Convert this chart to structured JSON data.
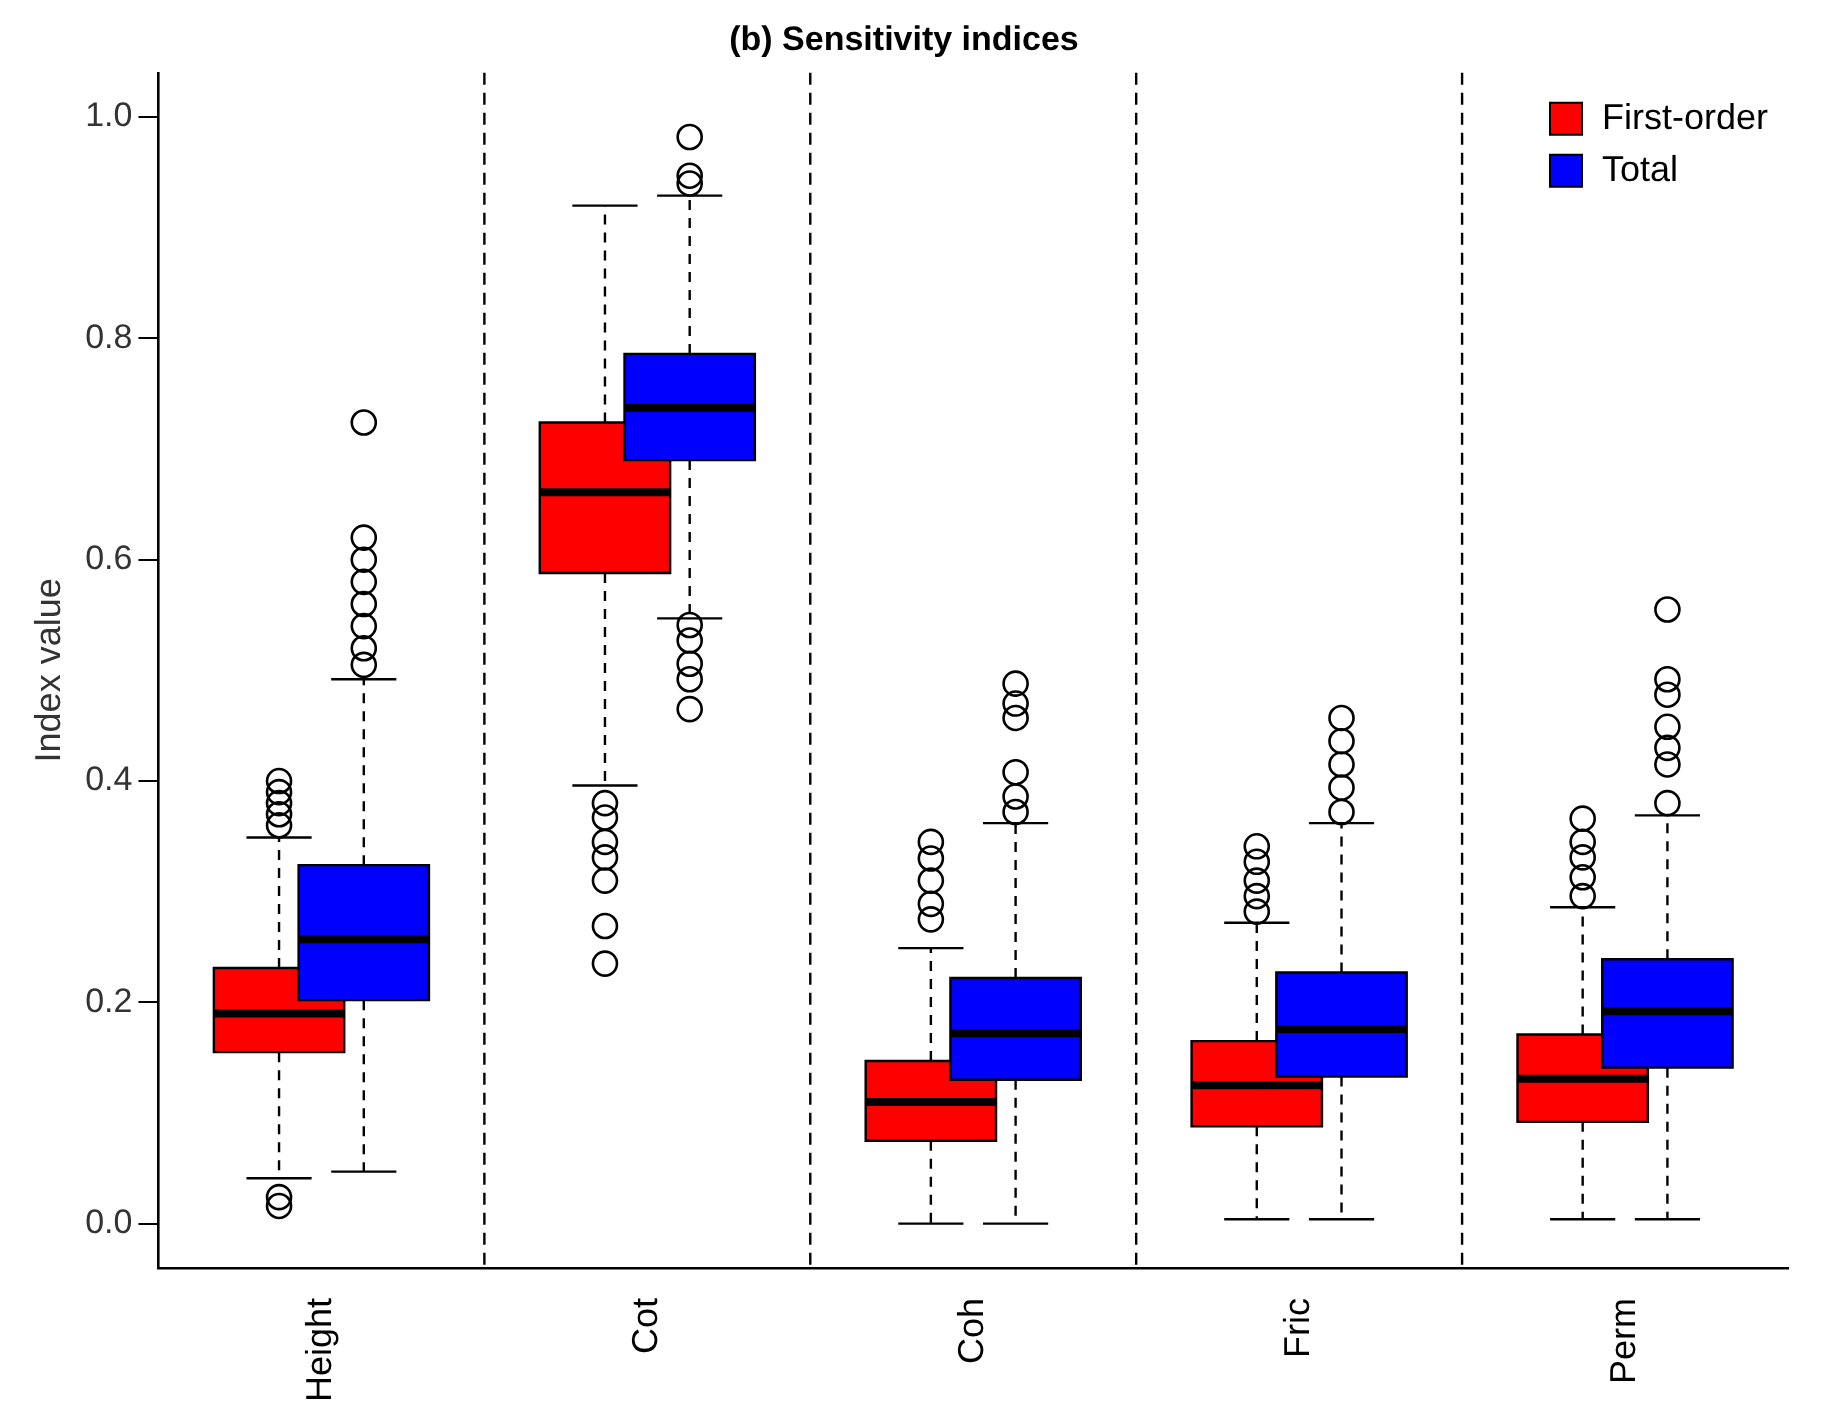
{
  "chart_data": {
    "type": "box",
    "title": "(b) Sensitivity indices",
    "ylabel": "Index value",
    "categories": [
      "Height",
      "Cot",
      "Coh",
      "Fric",
      "Perm"
    ],
    "ylim": [
      -0.04,
      1.04
    ],
    "yticks": [
      {
        "value": 0,
        "label": "0.0"
      },
      {
        "value": 0.2,
        "label": "0.2"
      },
      {
        "value": 0.4,
        "label": "0.4"
      },
      {
        "value": 0.6,
        "label": "0.6"
      },
      {
        "value": 0.8,
        "label": "0.8"
      },
      {
        "value": 1,
        "label": "1.0"
      }
    ],
    "grid": false,
    "legend": "top right",
    "series": [
      {
        "name": "First-order",
        "color": "#ff0000",
        "boxes": [
          {
            "low": 0.041,
            "q1": 0.155,
            "median": 0.19,
            "q3": 0.231,
            "high": 0.349,
            "outliers": [
              0.36,
              0.37,
              0.38,
              0.39,
              0.4,
              0.016,
              0.024
            ]
          },
          {
            "low": 0.396,
            "q1": 0.588,
            "median": 0.661,
            "q3": 0.724,
            "high": 0.92,
            "outliers": [
              0.38,
              0.367,
              0.345,
              0.331,
              0.31,
              0.269,
              0.235
            ]
          },
          {
            "low": 0,
            "q1": 0.075,
            "median": 0.11,
            "q3": 0.147,
            "high": 0.249,
            "outliers": [
              0.275,
              0.289,
              0.31,
              0.33,
              0.345
            ]
          },
          {
            "low": 0.004,
            "q1": 0.088,
            "median": 0.125,
            "q3": 0.165,
            "high": 0.272,
            "outliers": [
              0.282,
              0.296,
              0.31,
              0.327,
              0.341
            ]
          },
          {
            "low": 0.004,
            "q1": 0.092,
            "median": 0.131,
            "q3": 0.171,
            "high": 0.286,
            "outliers": [
              0.296,
              0.313,
              0.331,
              0.345,
              0.366
            ]
          }
        ]
      },
      {
        "name": "Total",
        "color": "#0000ff",
        "boxes": [
          {
            "low": 0.047,
            "q1": 0.202,
            "median": 0.257,
            "q3": 0.324,
            "high": 0.492,
            "outliers": [
              0.505,
              0.52,
              0.54,
              0.56,
              0.58,
              0.6,
              0.62,
              0.724
            ]
          },
          {
            "low": 0.547,
            "q1": 0.69,
            "median": 0.737,
            "q3": 0.786,
            "high": 0.929,
            "outliers": [
              0.94,
              0.947,
              0.982,
              0.541,
              0.527,
              0.506,
              0.492,
              0.465
            ]
          },
          {
            "low": 0,
            "q1": 0.13,
            "median": 0.172,
            "q3": 0.222,
            "high": 0.362,
            "outliers": [
              0.372,
              0.386,
              0.408,
              0.457,
              0.47,
              0.488
            ]
          },
          {
            "low": 0.004,
            "q1": 0.133,
            "median": 0.176,
            "q3": 0.227,
            "high": 0.362,
            "outliers": [
              0.372,
              0.394,
              0.415,
              0.436,
              0.457
            ]
          },
          {
            "low": 0.004,
            "q1": 0.141,
            "median": 0.192,
            "q3": 0.239,
            "high": 0.369,
            "outliers": [
              0.38,
              0.415,
              0.43,
              0.449,
              0.478,
              0.492,
              0.555
            ]
          }
        ]
      }
    ]
  }
}
